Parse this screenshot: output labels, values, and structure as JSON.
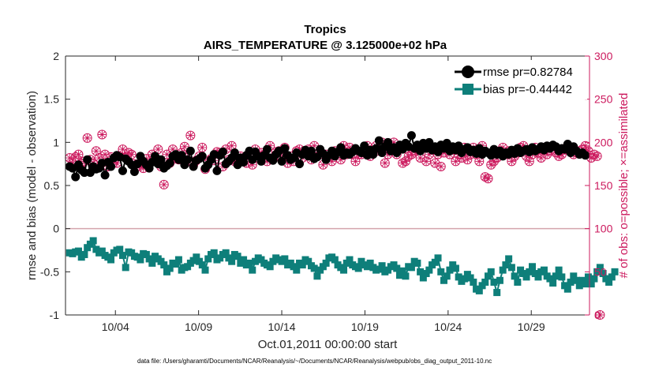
{
  "colors": {
    "rmse": "#000000",
    "bias": "#0e7f7a",
    "obs": "#cc1a5e",
    "zero_line": "#d4a5ad",
    "axis": "#262626"
  },
  "chart_data": {
    "type": "line",
    "title": "Tropics",
    "subtitle": "AIRS_TEMPERATURE @ 3.125000e+02 hPa",
    "xlabel": "Oct.01,2011 00:00:00 start",
    "ylabel": "rmse and bias (model - observation)",
    "ylabel_right": "# of obs: o=possible; ×=assimilated",
    "footnote": "data file: /Users/gharamti/Documents/NCAR/Reanalysis/~/Documents/NCAR/Reanalysis/webpub/obs_diag_output_2011-10.nc",
    "xlim": [
      1,
      32.5
    ],
    "ylim": [
      -1,
      2
    ],
    "ylim_right": [
      0,
      300
    ],
    "x_ticks": [
      4,
      9,
      14,
      19,
      24,
      29
    ],
    "x_tick_labels": [
      "10/04",
      "10/09",
      "10/14",
      "10/19",
      "10/24",
      "10/29"
    ],
    "y_ticks": [
      -1,
      -0.5,
      0,
      0.5,
      1,
      1.5,
      2
    ],
    "y_tick_labels": [
      "-1",
      "-0.5",
      "0",
      "0.5",
      "1",
      "1.5",
      "2"
    ],
    "y_ticks_right": [
      0,
      50,
      100,
      150,
      200,
      250,
      300
    ],
    "y_tick_labels_right": [
      "0",
      "50",
      "100",
      "150",
      "200",
      "250",
      "300"
    ],
    "legend_location": "top-right",
    "series": [
      {
        "name": "rmse",
        "legend": "rmse pr=0.82784",
        "axis": "left",
        "marker": "circle",
        "values": [
          0.72,
          0.7,
          0.6,
          0.74,
          0.68,
          0.65,
          0.8,
          0.65,
          0.72,
          0.69,
          0.7,
          0.76,
          0.62,
          0.77,
          0.72,
          0.82,
          0.85,
          0.83,
          0.67,
          0.81,
          0.78,
          0.74,
          0.66,
          0.75,
          0.84,
          0.78,
          0.74,
          0.7,
          0.77,
          0.84,
          0.75,
          0.8,
          0.7,
          0.73,
          0.76,
          0.84,
          0.86,
          0.8,
          0.85,
          0.74,
          0.8,
          0.9,
          0.72,
          0.79,
          0.81,
          0.84,
          0.7,
          0.74,
          0.8,
          0.86,
          0.67,
          0.85,
          0.89,
          0.75,
          0.78,
          0.82,
          0.88,
          0.74,
          0.82,
          0.77,
          0.85,
          0.9,
          0.8,
          0.89,
          0.84,
          0.78,
          0.85,
          0.92,
          0.82,
          0.79,
          0.86,
          0.9,
          0.78,
          0.93,
          0.85,
          0.8,
          0.82,
          0.88,
          0.75,
          0.86,
          0.91,
          0.84,
          0.9,
          0.81,
          0.83,
          0.92,
          0.87,
          0.8,
          0.85,
          0.9,
          0.84,
          0.89,
          0.94,
          0.85,
          0.88,
          0.86,
          0.89,
          0.93,
          0.9,
          0.88,
          0.96,
          0.85,
          0.91,
          0.86,
          0.93,
          1.02,
          0.88,
          0.95,
          1.0,
          0.9,
          0.94,
          0.88,
          0.97,
          0.92,
          0.99,
          0.95,
          1.08,
          0.93,
          0.97,
          0.9,
          0.99,
          0.93,
          1.0,
          0.91,
          0.95,
          0.89,
          0.97,
          0.93,
          0.99,
          0.9,
          0.95,
          0.91,
          0.96,
          0.88,
          0.92,
          0.94,
          0.89,
          0.91,
          0.87,
          0.93,
          0.86,
          0.9,
          0.88,
          0.85,
          0.92,
          0.86,
          0.9,
          0.84,
          0.88,
          0.86,
          0.91,
          0.87,
          0.93,
          0.88,
          0.9,
          0.92,
          0.89,
          0.94,
          0.9,
          0.92,
          0.95,
          0.91,
          0.96,
          0.93,
          0.97,
          0.95,
          0.9,
          0.93,
          0.92,
          0.98,
          0.88,
          0.95,
          0.9,
          0.86,
          0.88,
          0.85
        ]
      },
      {
        "name": "bias",
        "legend": "bias pr=-0.44442",
        "axis": "left",
        "marker": "square",
        "values": [
          -0.28,
          -0.29,
          -0.27,
          -0.26,
          -0.33,
          -0.3,
          -0.22,
          -0.18,
          -0.14,
          -0.24,
          -0.28,
          -0.26,
          -0.31,
          -0.33,
          -0.36,
          -0.28,
          -0.25,
          -0.24,
          -0.31,
          -0.45,
          -0.27,
          -0.28,
          -0.32,
          -0.33,
          -0.36,
          -0.29,
          -0.3,
          -0.35,
          -0.4,
          -0.32,
          -0.35,
          -0.38,
          -0.42,
          -0.5,
          -0.46,
          -0.4,
          -0.41,
          -0.36,
          -0.48,
          -0.45,
          -0.44,
          -0.4,
          -0.37,
          -0.33,
          -0.38,
          -0.42,
          -0.48,
          -0.35,
          -0.3,
          -0.28,
          -0.36,
          -0.34,
          -0.3,
          -0.28,
          -0.34,
          -0.38,
          -0.3,
          -0.32,
          -0.4,
          -0.36,
          -0.42,
          -0.4,
          -0.48,
          -0.38,
          -0.34,
          -0.36,
          -0.4,
          -0.42,
          -0.44,
          -0.38,
          -0.34,
          -0.36,
          -0.38,
          -0.35,
          -0.42,
          -0.4,
          -0.44,
          -0.48,
          -0.4,
          -0.42,
          -0.36,
          -0.38,
          -0.43,
          -0.46,
          -0.55,
          -0.48,
          -0.44,
          -0.4,
          -0.34,
          -0.33,
          -0.36,
          -0.42,
          -0.45,
          -0.48,
          -0.4,
          -0.36,
          -0.42,
          -0.44,
          -0.46,
          -0.38,
          -0.42,
          -0.44,
          -0.4,
          -0.45,
          -0.48,
          -0.47,
          -0.43,
          -0.5,
          -0.48,
          -0.44,
          -0.42,
          -0.46,
          -0.54,
          -0.49,
          -0.55,
          -0.44,
          -0.45,
          -0.38,
          -0.4,
          -0.5,
          -0.57,
          -0.52,
          -0.48,
          -0.42,
          -0.39,
          -0.34,
          -0.5,
          -0.6,
          -0.55,
          -0.48,
          -0.42,
          -0.46,
          -0.56,
          -0.61,
          -0.58,
          -0.53,
          -0.57,
          -0.62,
          -0.7,
          -0.72,
          -0.66,
          -0.62,
          -0.55,
          -0.5,
          -0.62,
          -0.74,
          -0.6,
          -0.48,
          -0.42,
          -0.35,
          -0.45,
          -0.55,
          -0.62,
          -0.48,
          -0.52,
          -0.56,
          -0.5,
          -0.44,
          -0.52,
          -0.56,
          -0.5,
          -0.48,
          -0.55,
          -0.58,
          -0.63,
          -0.55,
          -0.48,
          -0.56,
          -0.66,
          -0.7,
          -0.62,
          -0.55,
          -0.6,
          -0.66,
          -0.6,
          -0.64,
          -0.56,
          -0.64,
          -0.58,
          -0.5,
          -0.45,
          -0.52,
          -0.58,
          -0.62,
          -0.56,
          -0.5
        ]
      },
      {
        "name": "obs_possible",
        "axis": "right",
        "marker": "circle-open",
        "values": [
          182,
          176,
          183,
          186,
          175,
          178,
          205,
          180,
          176,
          190,
          182,
          209,
          186,
          172,
          183,
          177,
          176,
          184,
          192,
          182,
          188,
          186,
          175,
          172,
          176,
          170,
          181,
          176,
          186,
          178,
          192,
          172,
          151,
          186,
          176,
          192,
          181,
          180,
          188,
          195,
          182,
          208,
          174,
          179,
          184,
          194,
          169,
          176,
          181,
          179,
          189,
          188,
          172,
          192,
          180,
          196,
          178,
          176,
          184,
          182,
          176,
          186,
          174,
          192,
          182,
          188,
          186,
          178,
          196,
          182,
          189,
          190,
          180,
          194,
          176,
          184,
          178,
          190,
          192,
          182,
          188,
          192,
          180,
          196,
          186,
          186,
          174,
          186,
          184,
          178,
          190,
          187,
          180,
          196,
          186,
          194,
          186,
          178,
          186,
          186,
          188,
          196,
          184,
          189,
          196,
          190,
          200,
          176,
          186,
          190,
          200,
          186,
          194,
          176,
          178,
          184,
          186,
          190,
          192,
          182,
          196,
          178,
          186,
          194,
          176,
          186,
          172,
          188,
          194,
          186,
          192,
          178,
          186,
          182,
          194,
          180,
          186,
          194,
          186,
          178,
          196,
          160,
          158,
          174,
          178,
          182,
          190,
          194,
          186,
          190,
          178,
          184,
          188,
          194,
          196,
          184,
          178,
          186,
          194,
          188,
          182,
          194,
          186,
          190,
          196,
          188,
          184,
          186,
          192,
          196,
          194,
          186,
          188,
          190,
          192,
          196,
          190,
          182,
          186,
          184,
          0
        ]
      },
      {
        "name": "obs_assimilated",
        "axis": "right",
        "marker": "x",
        "values": [
          182,
          176,
          183,
          186,
          175,
          178,
          205,
          180,
          176,
          190,
          182,
          209,
          186,
          172,
          183,
          177,
          176,
          184,
          192,
          182,
          188,
          186,
          175,
          172,
          176,
          170,
          181,
          176,
          186,
          178,
          192,
          172,
          151,
          186,
          176,
          192,
          181,
          180,
          188,
          195,
          182,
          208,
          174,
          179,
          184,
          194,
          169,
          176,
          181,
          179,
          189,
          188,
          172,
          192,
          180,
          196,
          178,
          176,
          184,
          182,
          176,
          186,
          174,
          192,
          182,
          188,
          186,
          178,
          196,
          182,
          189,
          190,
          180,
          194,
          176,
          184,
          178,
          190,
          192,
          182,
          188,
          192,
          180,
          196,
          186,
          186,
          174,
          186,
          184,
          178,
          190,
          187,
          180,
          196,
          186,
          194,
          186,
          178,
          186,
          186,
          188,
          196,
          184,
          189,
          196,
          190,
          200,
          176,
          186,
          190,
          200,
          186,
          194,
          176,
          178,
          184,
          186,
          190,
          192,
          182,
          196,
          178,
          186,
          194,
          176,
          186,
          172,
          188,
          194,
          186,
          192,
          178,
          186,
          182,
          194,
          180,
          186,
          194,
          186,
          178,
          196,
          160,
          158,
          174,
          178,
          182,
          190,
          194,
          186,
          190,
          178,
          184,
          188,
          194,
          196,
          184,
          178,
          186,
          194,
          188,
          182,
          194,
          186,
          190,
          196,
          188,
          184,
          186,
          192,
          196,
          194,
          186,
          188,
          190,
          192,
          196,
          190,
          182,
          186,
          184,
          0
        ]
      }
    ]
  }
}
